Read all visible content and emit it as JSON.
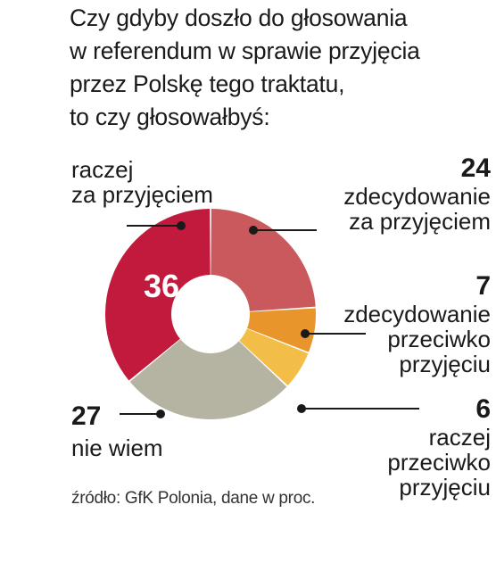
{
  "question": "Czy gdyby doszło do głosowania\nw referendum w sprawie przyjęcia\nprzez Polskę tego traktatu,\nto czy głosowałbyś:",
  "chart_data": {
    "type": "pie",
    "title": "Czy gdyby doszło do głosowania w referendum w sprawie przyjęcia przez Polskę tego traktatu, to czy głosowałbyś:",
    "unit": "%",
    "slices": [
      {
        "label": "zdecydowanie za przyjęciem",
        "value": 24,
        "value_label": "24",
        "color": "#c9595c"
      },
      {
        "label": "zdecydowanie przeciwko przyjęciu",
        "value": 7,
        "value_label": "7",
        "color": "#e8952b"
      },
      {
        "label": "raczej przeciwko przyjęciu",
        "value": 6,
        "value_label": "6",
        "color": "#f2be48"
      },
      {
        "label": "nie wiem",
        "value": 27,
        "value_label": "27",
        "color": "#b5b4a3"
      },
      {
        "label": "raczej za przyjęciem",
        "value": 36,
        "value_label": "36",
        "color": "#c21a3c"
      }
    ],
    "source": "źródło: GfK Polonia, dane w proc."
  },
  "labels": {
    "s0_text": "zdecydowanie\nza przyjęciem",
    "s1_text": "zdecydowanie\nprzeciwko\nprzyjęciu",
    "s2_text": "raczej\nprzeciwko\nprzyjęciu",
    "s3_text": "nie wiem",
    "s4_text": "raczej\nza przyjęciem"
  }
}
